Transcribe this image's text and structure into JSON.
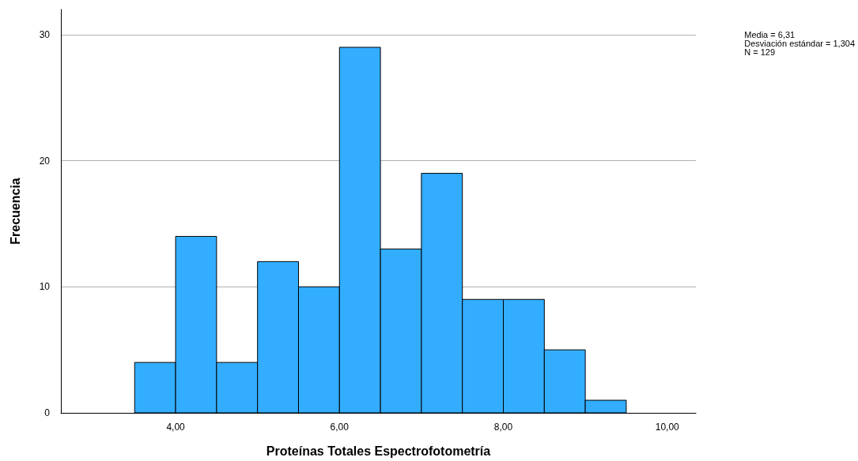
{
  "chart_data": {
    "type": "histogram",
    "xlabel": "Proteínas Totales Espectrofotometría",
    "ylabel": "Frecuencia",
    "bins": [
      3.5,
      4.0,
      4.5,
      5.0,
      5.5,
      6.0,
      6.5,
      7.0,
      7.5,
      8.0,
      8.5,
      9.0,
      9.5
    ],
    "values": [
      4,
      14,
      4,
      12,
      10,
      29,
      13,
      19,
      9,
      9,
      5,
      1
    ],
    "color": "#33adff",
    "xlim": [
      2.6,
      10.35
    ],
    "xticks": [
      {
        "value": 4,
        "label": "4,00"
      },
      {
        "value": 6,
        "label": "6,00"
      },
      {
        "value": 8,
        "label": "8,00"
      },
      {
        "value": 10,
        "label": "10,00"
      }
    ],
    "ylim": [
      0,
      32
    ],
    "yticks": [
      0,
      10,
      20,
      30
    ],
    "grid": "y",
    "annotations": [
      "Media = 6,31\nDesviación estándar = 1,304\nN = 129"
    ]
  }
}
